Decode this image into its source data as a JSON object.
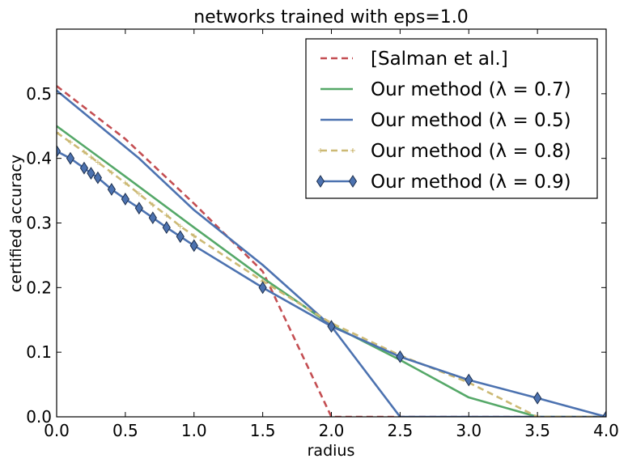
{
  "chart_data": {
    "type": "line",
    "title": "networks trained with eps=1.0",
    "xlabel": "radius",
    "ylabel": "certified accuracy",
    "xlim": [
      0.0,
      4.0
    ],
    "ylim": [
      0.0,
      0.6
    ],
    "xticks": [
      "0.0",
      "0.5",
      "1.0",
      "1.5",
      "2.0",
      "2.5",
      "3.0",
      "3.5",
      "4.0"
    ],
    "yticks": [
      "0.0",
      "0.1",
      "0.2",
      "0.3",
      "0.4",
      "0.5"
    ],
    "grid": false,
    "legend_position": "top-right",
    "series": [
      {
        "name": "[Salman et al.]",
        "color": "#c44e52",
        "style": "dashed",
        "marker": "none",
        "x": [
          0.0,
          0.5,
          1.0,
          1.5,
          2.0,
          2.5,
          3.0,
          3.5,
          4.0
        ],
        "y": [
          0.512,
          0.43,
          0.33,
          0.225,
          0.0,
          0.0,
          0.0,
          0.0,
          0.0
        ]
      },
      {
        "name": "Our method (λ = 0.7)",
        "color": "#55a868",
        "style": "solid",
        "marker": "none",
        "x": [
          0.0,
          0.5,
          1.0,
          1.5,
          2.0,
          2.5,
          3.0,
          3.5,
          4.0
        ],
        "y": [
          0.45,
          0.372,
          0.293,
          0.215,
          0.142,
          0.088,
          0.03,
          0.0,
          0.0
        ]
      },
      {
        "name": "Our method (λ = 0.5)",
        "color": "#4c72b0",
        "style": "solid",
        "marker": "none",
        "x": [
          0.0,
          0.6,
          1.0,
          1.5,
          2.0,
          2.5,
          3.0,
          3.5,
          4.0
        ],
        "y": [
          0.505,
          0.4,
          0.32,
          0.235,
          0.14,
          0.0,
          0.0,
          0.0,
          0.0
        ]
      },
      {
        "name": "Our method (λ = 0.8)",
        "color": "#ccb974",
        "style": "dashed",
        "marker": "plus",
        "x": [
          0.0,
          0.1,
          0.2,
          0.25,
          0.3,
          0.4,
          0.5,
          0.6,
          0.7,
          0.8,
          0.9,
          1.0,
          1.5,
          2.0,
          2.5,
          3.0,
          3.5,
          4.0
        ],
        "y": [
          0.44,
          0.425,
          0.41,
          0.402,
          0.394,
          0.378,
          0.362,
          0.345,
          0.328,
          0.312,
          0.295,
          0.28,
          0.21,
          0.145,
          0.095,
          0.053,
          0.0,
          0.0
        ]
      },
      {
        "name": "Our method (λ = 0.9)",
        "color": "#4c72b0",
        "style": "solid",
        "marker": "diamond",
        "x": [
          0.0,
          0.1,
          0.2,
          0.25,
          0.3,
          0.4,
          0.5,
          0.6,
          0.7,
          0.8,
          0.9,
          1.0,
          1.5,
          2.0,
          2.5,
          3.0,
          3.5,
          4.0
        ],
        "y": [
          0.411,
          0.4,
          0.385,
          0.377,
          0.37,
          0.352,
          0.337,
          0.323,
          0.308,
          0.293,
          0.279,
          0.265,
          0.2,
          0.14,
          0.093,
          0.057,
          0.029,
          0.0
        ]
      }
    ]
  }
}
